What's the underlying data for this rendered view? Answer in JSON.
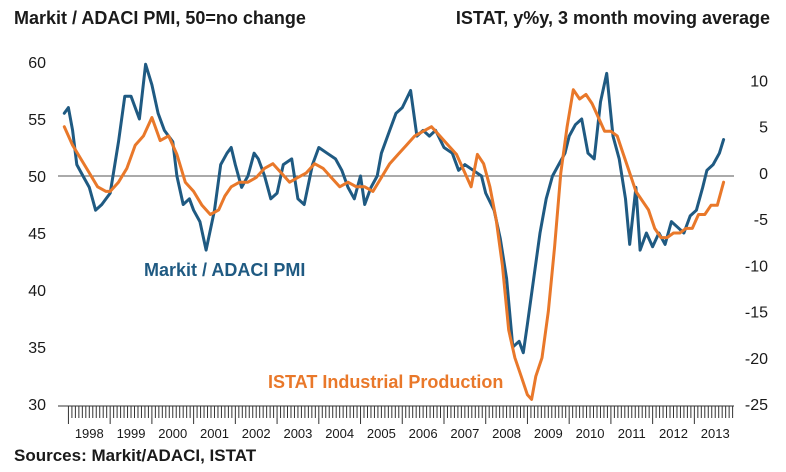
{
  "header": {
    "left_title": "Markit / ADACI PMI, 50=no change",
    "right_title": "ISTAT, y%y, 3 month moving average"
  },
  "footer": {
    "source": "Sources: Markit/ADACI, ISTAT"
  },
  "colors": {
    "pmi": "#1f5a82",
    "production": "#e9782a",
    "reference_line": "#555555"
  },
  "chart_data": {
    "type": "line",
    "left_axis": {
      "ylim": [
        30,
        60
      ],
      "ticks": [
        30,
        35,
        40,
        45,
        50,
        55,
        60
      ]
    },
    "right_axis": {
      "ylim": [
        -25,
        12
      ],
      "ticks": [
        -25,
        -20,
        -15,
        -10,
        -5,
        0,
        5,
        10
      ]
    },
    "reference_line": {
      "axis": "left",
      "value": 50
    },
    "x_labels": [
      "1998",
      "1999",
      "2000",
      "2001",
      "2002",
      "2003",
      "2004",
      "2005",
      "2006",
      "2007",
      "2008",
      "2009",
      "2010",
      "2011",
      "2012",
      "2013"
    ],
    "series": [
      {
        "name": "Markit / ADACI PMI",
        "axis": "left",
        "x": [
          1997.9,
          1998.0,
          1998.1,
          1998.2,
          1998.35,
          1998.5,
          1998.65,
          1998.8,
          1999.0,
          1999.2,
          1999.35,
          1999.5,
          1999.7,
          1999.85,
          2000.0,
          2000.15,
          2000.3,
          2000.5,
          2000.6,
          2000.75,
          2000.9,
          2001.0,
          2001.15,
          2001.3,
          2001.5,
          2001.65,
          2001.8,
          2001.9,
          2002.0,
          2002.15,
          2002.3,
          2002.45,
          2002.55,
          2002.7,
          2002.85,
          2003.0,
          2003.15,
          2003.35,
          2003.5,
          2003.65,
          2003.85,
          2004.0,
          2004.2,
          2004.4,
          2004.55,
          2004.7,
          2004.85,
          2005.0,
          2005.1,
          2005.25,
          2005.4,
          2005.5,
          2005.7,
          2005.85,
          2006.0,
          2006.2,
          2006.35,
          2006.5,
          2006.65,
          2006.8,
          2007.0,
          2007.2,
          2007.35,
          2007.5,
          2007.7,
          2007.9,
          2008.0,
          2008.2,
          2008.35,
          2008.5,
          2008.65,
          2008.8,
          2008.9,
          2009.0,
          2009.15,
          2009.3,
          2009.45,
          2009.6,
          2009.75,
          2009.9,
          2010.0,
          2010.15,
          2010.3,
          2010.45,
          2010.6,
          2010.75,
          2010.9,
          2011.05,
          2011.2,
          2011.35,
          2011.45,
          2011.6,
          2011.7,
          2011.85,
          2012.0,
          2012.15,
          2012.3,
          2012.45,
          2012.6,
          2012.75,
          2012.9,
          2013.05,
          2013.2,
          2013.3,
          2013.45,
          2013.6,
          2013.7
        ],
        "values": [
          55.5,
          56.0,
          54.0,
          51.0,
          50.0,
          49.0,
          47.0,
          47.5,
          48.5,
          53.0,
          57.0,
          57.0,
          55.0,
          59.8,
          58.0,
          55.5,
          54.0,
          53.0,
          50.0,
          47.5,
          48.0,
          47.0,
          46.0,
          43.5,
          47.0,
          51.0,
          52.0,
          52.5,
          51.0,
          49.0,
          50.0,
          52.0,
          51.5,
          50.0,
          48.0,
          48.5,
          51.0,
          51.5,
          48.0,
          47.5,
          51.0,
          52.5,
          52.0,
          51.5,
          50.5,
          49.0,
          48.0,
          50.0,
          47.5,
          49.0,
          50.0,
          52.0,
          54.0,
          55.5,
          56.0,
          57.5,
          53.5,
          54.0,
          53.5,
          54.0,
          52.5,
          52.0,
          50.5,
          51.0,
          50.5,
          50.0,
          48.5,
          47.0,
          44.5,
          41.0,
          35.0,
          35.5,
          34.5,
          37.0,
          41.0,
          45.0,
          48.0,
          50.0,
          51.0,
          52.0,
          53.5,
          54.5,
          55.0,
          52.0,
          51.5,
          56.5,
          59.0,
          53.5,
          51.5,
          48.0,
          44.0,
          49.0,
          43.5,
          45.0,
          43.8,
          45.0,
          44.0,
          46.0,
          45.5,
          45.0,
          46.5,
          47.0,
          49.0,
          50.5,
          51.0,
          52.0,
          53.2
        ]
      },
      {
        "name": "ISTAT Industrial Production",
        "axis": "right",
        "x": [
          1997.9,
          1998.1,
          1998.3,
          1998.5,
          1998.7,
          1998.9,
          1999.0,
          1999.2,
          1999.4,
          1999.6,
          1999.8,
          2000.0,
          2000.2,
          2000.4,
          2000.6,
          2000.8,
          2001.0,
          2001.2,
          2001.4,
          2001.6,
          2001.75,
          2001.9,
          2002.1,
          2002.3,
          2002.5,
          2002.7,
          2002.9,
          2003.1,
          2003.3,
          2003.5,
          2003.7,
          2003.9,
          2004.1,
          2004.3,
          2004.5,
          2004.7,
          2004.9,
          2005.1,
          2005.3,
          2005.5,
          2005.7,
          2005.9,
          2006.1,
          2006.3,
          2006.5,
          2006.7,
          2006.9,
          2007.1,
          2007.3,
          2007.5,
          2007.65,
          2007.8,
          2007.95,
          2008.1,
          2008.25,
          2008.4,
          2008.55,
          2008.7,
          2008.85,
          2009.0,
          2009.1,
          2009.2,
          2009.35,
          2009.5,
          2009.65,
          2009.8,
          2009.95,
          2010.1,
          2010.25,
          2010.4,
          2010.55,
          2010.7,
          2010.85,
          2011.0,
          2011.15,
          2011.3,
          2011.45,
          2011.6,
          2011.75,
          2011.9,
          2012.05,
          2012.2,
          2012.35,
          2012.5,
          2012.65,
          2012.8,
          2012.95,
          2013.1,
          2013.25,
          2013.4,
          2013.55,
          2013.7
        ],
        "values": [
          5.0,
          3.0,
          1.5,
          0.0,
          -1.5,
          -2.0,
          -2.0,
          -1.0,
          0.5,
          3.0,
          4.0,
          6.0,
          3.5,
          4.0,
          2.0,
          -1.0,
          -2.0,
          -3.5,
          -4.5,
          -4.0,
          -2.5,
          -1.5,
          -1.0,
          -1.0,
          -0.5,
          0.5,
          1.0,
          0.0,
          -1.0,
          -0.5,
          0.0,
          1.0,
          0.5,
          -0.5,
          -1.5,
          -1.0,
          -1.5,
          -1.5,
          -2.0,
          -0.5,
          1.0,
          2.0,
          3.0,
          4.0,
          4.5,
          5.0,
          4.0,
          3.0,
          2.0,
          0.0,
          -1.5,
          2.0,
          1.0,
          -1.5,
          -5.0,
          -10.0,
          -17.0,
          -20.0,
          -22.0,
          -24.0,
          -24.5,
          -22.0,
          -20.0,
          -15.0,
          -8.0,
          0.0,
          5.0,
          9.0,
          8.0,
          8.5,
          7.5,
          6.0,
          4.5,
          4.5,
          4.0,
          2.0,
          0.0,
          -2.0,
          -3.0,
          -4.0,
          -6.0,
          -7.0,
          -7.0,
          -6.5,
          -6.5,
          -6.0,
          -6.0,
          -4.5,
          -4.5,
          -3.5,
          -3.5,
          -1.0
        ]
      }
    ],
    "annotations": [
      {
        "text": "Markit / ADACI PMI",
        "series": 0
      },
      {
        "text": "ISTAT Industrial Production",
        "series": 1
      }
    ]
  }
}
